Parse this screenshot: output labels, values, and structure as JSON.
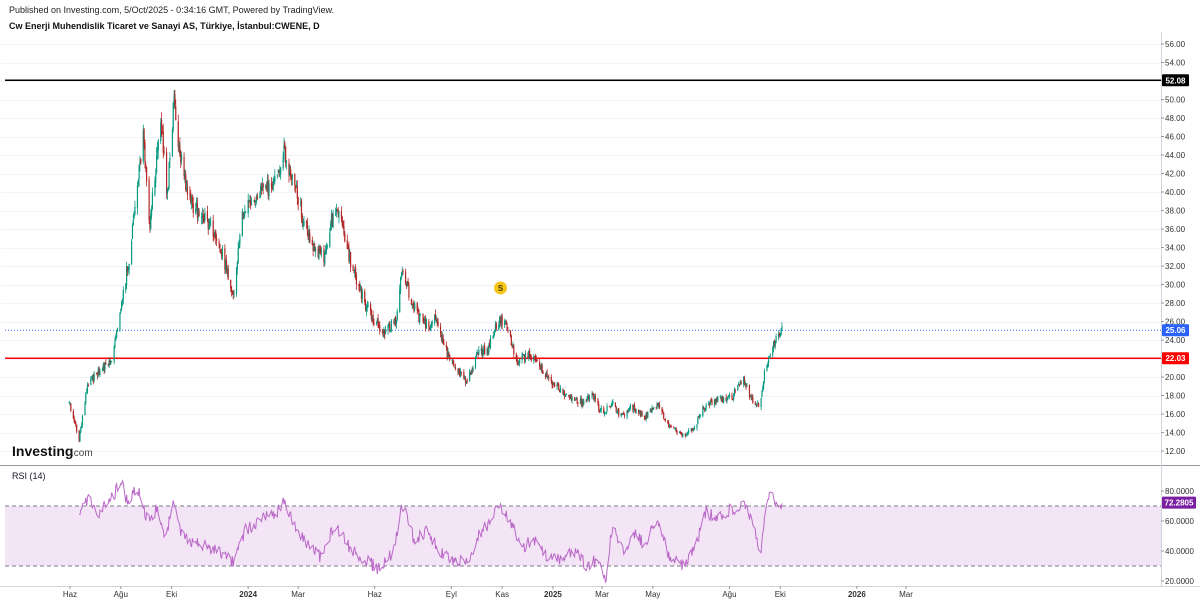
{
  "header": {
    "published": "Published on Investing.com, 5/Oct/2025 - 0:34:16 GMT, Powered by TradingView.",
    "symbol": "Cw Enerji Muhendislik Ticaret ve Sanayi AS, Türkiye, İstanbul:CWENE, D"
  },
  "watermark": {
    "brand": "Investing",
    "suffix": ".com"
  },
  "chart_data": [
    {
      "type": "candlestick",
      "symbol": "İstanbul:CWENE",
      "interval": "D",
      "y_axis": {
        "range": [
          11,
          57
        ],
        "ticks": [
          "12.00",
          "14.00",
          "16.00",
          "18.00",
          "20.00",
          "22.00",
          "24.00",
          "26.00",
          "28.00",
          "30.00",
          "32.00",
          "34.00",
          "36.00",
          "38.00",
          "40.00",
          "42.00",
          "44.00",
          "46.00",
          "48.00",
          "50.00",
          "52.00",
          "54.00",
          "56.00"
        ]
      },
      "x_axis": {
        "ticks": [
          "Haz",
          "Ağu",
          "Eki",
          "2024",
          "Mar",
          "Haz",
          "Eyl",
          "Kas",
          "2025",
          "Mar",
          "May",
          "Ağu",
          "Eki",
          "2026",
          "Mar"
        ]
      },
      "horizontal_lines": [
        {
          "value": 52.08,
          "label": "52.08",
          "color": "#000000"
        },
        {
          "value": 22.03,
          "label": "22.03",
          "color": "#ff0000"
        }
      ],
      "last_price": {
        "value": 25.06,
        "label": "25.06",
        "color": "#2962ff"
      },
      "marker": {
        "label": "S",
        "color": "#f5c518",
        "near_value": 26.6
      },
      "colors": {
        "up": "#089981",
        "down": "#b32525"
      },
      "price_path": {
        "approximate": true,
        "key_points": [
          {
            "date": "2023-05-31",
            "value": 17.2
          },
          {
            "date": "2023-06-12",
            "value": 13.3
          },
          {
            "date": "2023-06-22",
            "value": 19.2
          },
          {
            "date": "2023-07-10",
            "value": 21.0
          },
          {
            "date": "2023-07-20",
            "value": 21.5
          },
          {
            "date": "2023-07-31",
            "value": 26.8
          },
          {
            "date": "2023-08-12",
            "value": 33.5
          },
          {
            "date": "2023-08-28",
            "value": 46.0
          },
          {
            "date": "2023-09-05",
            "value": 36.5
          },
          {
            "date": "2023-09-18",
            "value": 48.0
          },
          {
            "date": "2023-09-26",
            "value": 39.5
          },
          {
            "date": "2023-10-04",
            "value": 50.5
          },
          {
            "date": "2023-10-10",
            "value": 45.0
          },
          {
            "date": "2023-10-22",
            "value": 39.0
          },
          {
            "date": "2023-11-07",
            "value": 37.5
          },
          {
            "date": "2023-11-20",
            "value": 36.0
          },
          {
            "date": "2023-12-02",
            "value": 33.0
          },
          {
            "date": "2023-12-14",
            "value": 28.8
          },
          {
            "date": "2023-12-25",
            "value": 37.5
          },
          {
            "date": "2024-01-10",
            "value": 39.5
          },
          {
            "date": "2024-02-02",
            "value": 41.0
          },
          {
            "date": "2024-02-12",
            "value": 44.5
          },
          {
            "date": "2024-02-24",
            "value": 41.5
          },
          {
            "date": "2024-03-08",
            "value": 36.5
          },
          {
            "date": "2024-03-22",
            "value": 33.5
          },
          {
            "date": "2024-04-01",
            "value": 32.8
          },
          {
            "date": "2024-04-10",
            "value": 37.0
          },
          {
            "date": "2024-04-18",
            "value": 38.2
          },
          {
            "date": "2024-05-04",
            "value": 32.0
          },
          {
            "date": "2024-05-22",
            "value": 27.5
          },
          {
            "date": "2024-06-10",
            "value": 24.8
          },
          {
            "date": "2024-06-26",
            "value": 26.0
          },
          {
            "date": "2024-07-04",
            "value": 31.8
          },
          {
            "date": "2024-07-14",
            "value": 28.5
          },
          {
            "date": "2024-07-24",
            "value": 26.5
          },
          {
            "date": "2024-08-05",
            "value": 25.5
          },
          {
            "date": "2024-08-14",
            "value": 26.5
          },
          {
            "date": "2024-08-27",
            "value": 22.5
          },
          {
            "date": "2024-09-10",
            "value": 20.5
          },
          {
            "date": "2024-09-20",
            "value": 19.5
          },
          {
            "date": "2024-10-02",
            "value": 22.5
          },
          {
            "date": "2024-10-15",
            "value": 23.0
          },
          {
            "date": "2024-10-27",
            "value": 26.0
          },
          {
            "date": "2024-11-06",
            "value": 25.8
          },
          {
            "date": "2024-11-19",
            "value": 21.5
          },
          {
            "date": "2024-12-02",
            "value": 22.5
          },
          {
            "date": "2024-12-16",
            "value": 21.2
          },
          {
            "date": "2025-01-04",
            "value": 19.0
          },
          {
            "date": "2025-01-20",
            "value": 17.8
          },
          {
            "date": "2025-02-05",
            "value": 17.2
          },
          {
            "date": "2025-02-16",
            "value": 18.3
          },
          {
            "date": "2025-03-01",
            "value": 16.2
          },
          {
            "date": "2025-03-14",
            "value": 17.0
          },
          {
            "date": "2025-03-24",
            "value": 15.8
          },
          {
            "date": "2025-04-06",
            "value": 16.8
          },
          {
            "date": "2025-04-20",
            "value": 15.6
          },
          {
            "date": "2025-05-06",
            "value": 17.0
          },
          {
            "date": "2025-05-20",
            "value": 14.8
          },
          {
            "date": "2025-06-05",
            "value": 13.8
          },
          {
            "date": "2025-06-18",
            "value": 14.2
          },
          {
            "date": "2025-07-02",
            "value": 16.8
          },
          {
            "date": "2025-07-18",
            "value": 17.5
          },
          {
            "date": "2025-08-05",
            "value": 18.0
          },
          {
            "date": "2025-08-18",
            "value": 19.7
          },
          {
            "date": "2025-08-28",
            "value": 17.5
          },
          {
            "date": "2025-09-06",
            "value": 16.8
          },
          {
            "date": "2025-09-12",
            "value": 20.5
          },
          {
            "date": "2025-09-20",
            "value": 22.5
          },
          {
            "date": "2025-09-26",
            "value": 24.5
          },
          {
            "date": "2025-10-03",
            "value": 25.06
          }
        ]
      }
    },
    {
      "type": "line",
      "title": "RSI (14)",
      "y_axis": {
        "range": [
          16,
          90
        ],
        "ticks": [
          "20.0000",
          "40.0000",
          "60.0000",
          "80.0000"
        ]
      },
      "band": {
        "upper": 70,
        "lower": 30
      },
      "last_value": {
        "value": 72.2805,
        "label": "72.2805",
        "color": "#7b1fa2"
      },
      "line_color": "#ba68c8",
      "series_approx": {
        "approximate": true,
        "key_points": [
          {
            "date": "2023-06-12",
            "value": 68
          },
          {
            "date": "2023-06-22",
            "value": 74
          },
          {
            "date": "2023-07-05",
            "value": 66
          },
          {
            "date": "2023-07-18",
            "value": 72
          },
          {
            "date": "2023-08-01",
            "value": 86
          },
          {
            "date": "2023-08-10",
            "value": 72
          },
          {
            "date": "2023-08-20",
            "value": 84
          },
          {
            "date": "2023-09-02",
            "value": 60
          },
          {
            "date": "2023-09-14",
            "value": 68
          },
          {
            "date": "2023-09-24",
            "value": 50
          },
          {
            "date": "2023-10-03",
            "value": 70
          },
          {
            "date": "2023-10-12",
            "value": 52
          },
          {
            "date": "2023-10-26",
            "value": 46
          },
          {
            "date": "2023-11-14",
            "value": 42
          },
          {
            "date": "2023-12-02",
            "value": 38
          },
          {
            "date": "2023-12-14",
            "value": 32
          },
          {
            "date": "2023-12-28",
            "value": 54
          },
          {
            "date": "2024-01-14",
            "value": 60
          },
          {
            "date": "2024-02-04",
            "value": 66
          },
          {
            "date": "2024-02-12",
            "value": 74
          },
          {
            "date": "2024-02-26",
            "value": 56
          },
          {
            "date": "2024-03-12",
            "value": 44
          },
          {
            "date": "2024-03-28",
            "value": 36
          },
          {
            "date": "2024-04-14",
            "value": 58
          },
          {
            "date": "2024-05-02",
            "value": 42
          },
          {
            "date": "2024-05-20",
            "value": 34
          },
          {
            "date": "2024-06-06",
            "value": 28
          },
          {
            "date": "2024-06-24",
            "value": 40
          },
          {
            "date": "2024-07-04",
            "value": 71
          },
          {
            "date": "2024-07-18",
            "value": 48
          },
          {
            "date": "2024-08-02",
            "value": 52
          },
          {
            "date": "2024-08-18",
            "value": 40
          },
          {
            "date": "2024-09-06",
            "value": 32
          },
          {
            "date": "2024-09-20",
            "value": 34
          },
          {
            "date": "2024-10-06",
            "value": 52
          },
          {
            "date": "2024-10-20",
            "value": 60
          },
          {
            "date": "2024-10-29",
            "value": 72
          },
          {
            "date": "2024-11-12",
            "value": 58
          },
          {
            "date": "2024-11-24",
            "value": 42
          },
          {
            "date": "2024-12-08",
            "value": 48
          },
          {
            "date": "2024-12-24",
            "value": 38
          },
          {
            "date": "2025-01-10",
            "value": 34
          },
          {
            "date": "2025-01-26",
            "value": 40
          },
          {
            "date": "2025-02-10",
            "value": 30
          },
          {
            "date": "2025-02-22",
            "value": 34
          },
          {
            "date": "2025-03-06",
            "value": 22
          },
          {
            "date": "2025-03-14",
            "value": 60
          },
          {
            "date": "2025-03-26",
            "value": 40
          },
          {
            "date": "2025-04-10",
            "value": 52
          },
          {
            "date": "2025-04-22",
            "value": 44
          },
          {
            "date": "2025-05-06",
            "value": 62
          },
          {
            "date": "2025-05-20",
            "value": 38
          },
          {
            "date": "2025-06-06",
            "value": 30
          },
          {
            "date": "2025-06-20",
            "value": 40
          },
          {
            "date": "2025-07-04",
            "value": 66
          },
          {
            "date": "2025-07-18",
            "value": 62
          },
          {
            "date": "2025-08-04",
            "value": 68
          },
          {
            "date": "2025-08-18",
            "value": 70
          },
          {
            "date": "2025-08-30",
            "value": 58
          },
          {
            "date": "2025-09-08",
            "value": 38
          },
          {
            "date": "2025-09-14",
            "value": 72
          },
          {
            "date": "2025-09-22",
            "value": 78
          },
          {
            "date": "2025-09-28",
            "value": 70
          },
          {
            "date": "2025-10-03",
            "value": 72.28
          }
        ]
      }
    }
  ]
}
